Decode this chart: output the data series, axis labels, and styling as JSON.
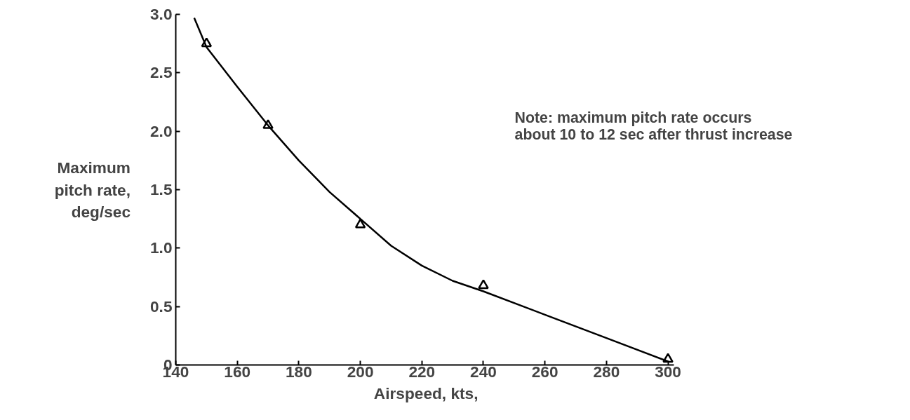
{
  "chart_data": {
    "type": "scatter",
    "xlabel": "Airspeed, kts,",
    "ylabel": "Maximum\npitch rate,\ndeg/sec",
    "annotations": [
      "Note:  maximum pitch rate occurs\nabout 10 to 12  sec after thrust increase"
    ],
    "xlim": [
      140,
      302
    ],
    "ylim": [
      0,
      3.0
    ],
    "xticks": [
      140,
      160,
      180,
      200,
      220,
      240,
      260,
      280,
      300
    ],
    "yticks": [
      0,
      0.5,
      {
        "value": 1.0,
        "label": "1.0"
      },
      1.5,
      {
        "value": 2.0,
        "label": "2.0"
      },
      2.5,
      {
        "value": 3.0,
        "label": "3.0"
      }
    ],
    "grid": false,
    "series": [
      {
        "marker": "triangle",
        "color": "#000000",
        "x": [
          150,
          170,
          200,
          240,
          300
        ],
        "values": [
          2.75,
          2.05,
          1.2,
          0.68,
          0.05
        ]
      },
      {
        "type": "line",
        "line_style": "solid",
        "color": "#000000",
        "x": [
          146,
          150,
          160,
          170,
          180,
          190,
          200,
          210,
          220,
          230,
          240,
          260,
          280,
          300
        ],
        "values": [
          2.97,
          2.72,
          2.38,
          2.05,
          1.75,
          1.48,
          1.25,
          1.02,
          0.85,
          0.72,
          0.63,
          0.43,
          0.23,
          0.03
        ]
      }
    ]
  }
}
